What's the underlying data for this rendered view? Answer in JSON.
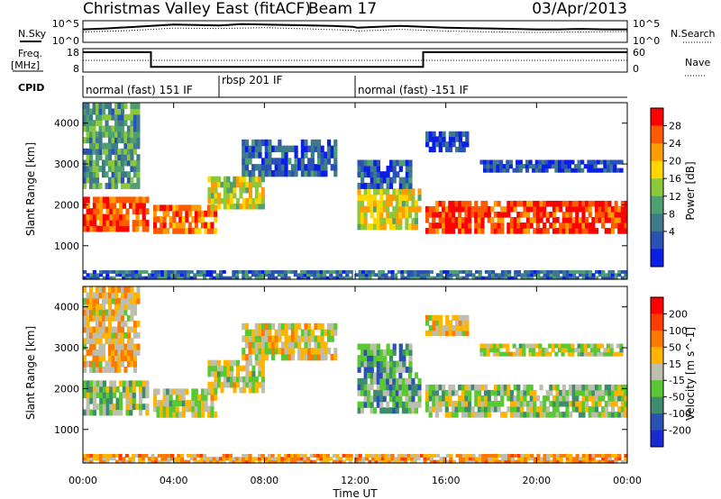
{
  "header": {
    "station": "Christmas Valley East (fitACF)",
    "beam": "Beam 17",
    "date": "03/Apr/2013"
  },
  "status_panels": {
    "nsky_label": "N.Sky",
    "nsearch_label": "N.Search",
    "nsky_ticks": [
      "10^5",
      "10^0"
    ],
    "nsearch_ticks": [
      "10^5",
      "10^0"
    ],
    "freq_label_line1": "Freq.",
    "freq_label_line2": "[MHz]",
    "freq_ticks": [
      "18",
      "8"
    ],
    "nave_label": "Nave",
    "nave_ticks": [
      "60",
      "0"
    ],
    "cpid_label": "CPID",
    "cpid_segments": [
      {
        "label": "normal (fast) 151 IF",
        "start_hr": 0.0,
        "end_hr": 6.0
      },
      {
        "label": "rbsp 201 IF",
        "start_hr": 6.0,
        "end_hr": 12.0
      },
      {
        "label": "normal (fast) -151 IF",
        "start_hr": 12.0,
        "end_hr": 24.0
      }
    ],
    "nsky_series": [
      [
        0.0,
        3.0
      ],
      [
        1.0,
        3.2
      ],
      [
        2.0,
        3.5
      ],
      [
        3.0,
        3.8
      ],
      [
        4.0,
        4.1
      ],
      [
        5.0,
        4.0
      ],
      [
        6.0,
        3.9
      ],
      [
        7.0,
        4.2
      ],
      [
        8.0,
        4.1
      ],
      [
        9.0,
        4.0
      ],
      [
        10.0,
        3.9
      ],
      [
        11.0,
        3.8
      ],
      [
        11.9,
        3.6
      ],
      [
        12.1,
        3.4
      ],
      [
        13.0,
        3.6
      ],
      [
        14.0,
        3.8
      ],
      [
        15.0,
        3.6
      ],
      [
        16.0,
        3.4
      ],
      [
        17.0,
        3.3
      ],
      [
        18.0,
        3.2
      ],
      [
        19.0,
        3.1
      ],
      [
        20.0,
        3.0
      ],
      [
        21.0,
        3.0
      ],
      [
        22.0,
        3.1
      ],
      [
        23.0,
        3.0
      ],
      [
        24.0,
        3.0
      ]
    ],
    "nsearch_series": [
      [
        0.0,
        2.4
      ],
      [
        2.0,
        2.7
      ],
      [
        4.0,
        3.3
      ],
      [
        6.0,
        3.2
      ],
      [
        8.0,
        3.4
      ],
      [
        10.0,
        3.1
      ],
      [
        11.9,
        2.8
      ],
      [
        12.1,
        2.6
      ],
      [
        14.0,
        3.0
      ],
      [
        16.0,
        2.6
      ],
      [
        18.0,
        2.4
      ],
      [
        20.0,
        2.3
      ],
      [
        22.0,
        2.4
      ],
      [
        24.0,
        2.5
      ]
    ],
    "freq_series": [
      [
        0.0,
        16.5
      ],
      [
        3.0,
        16.5
      ],
      [
        3.0,
        10.2
      ],
      [
        15.0,
        10.2
      ],
      [
        15.0,
        16.5
      ],
      [
        24.0,
        16.5
      ]
    ],
    "nave_series": [
      [
        0.0,
        30
      ],
      [
        24.0,
        30
      ]
    ]
  },
  "chart_data": [
    {
      "type": "heatmap",
      "title": "",
      "xlabel": "",
      "ylabel": "Slant Range [km]",
      "xlim": [
        0,
        24
      ],
      "ylim": [
        180,
        4500
      ],
      "yticks": [
        1000,
        2000,
        3000,
        4000
      ],
      "colorbar_label": "Power [dB]",
      "colorbar_ticks": [
        "28",
        "24",
        "20",
        "16",
        "12",
        "8",
        "4"
      ],
      "colorbar_colors": [
        "#0a1ee6",
        "#2a52b4",
        "#3f7a8c",
        "#4fa070",
        "#8cc83c",
        "#ffd700",
        "#ff9c00",
        "#ff5a00",
        "#ff0000"
      ],
      "bands": [
        {
          "t0": 0.0,
          "t1": 2.9,
          "r0": 1350,
          "r1": 2200,
          "level": 0.85
        },
        {
          "t0": 3.1,
          "t1": 5.9,
          "r0": 1300,
          "r1": 2000,
          "level": 0.8
        },
        {
          "t0": 5.5,
          "t1": 8.0,
          "r0": 1900,
          "r1": 2700,
          "level": 0.55
        },
        {
          "t0": 7.0,
          "t1": 11.2,
          "r0": 2700,
          "r1": 3600,
          "level": 0.2
        },
        {
          "t0": 12.1,
          "t1": 14.9,
          "r0": 1400,
          "r1": 2400,
          "level": 0.6
        },
        {
          "t0": 12.1,
          "t1": 14.5,
          "r0": 2400,
          "r1": 3100,
          "level": 0.2
        },
        {
          "t0": 15.1,
          "t1": 24.0,
          "r0": 1300,
          "r1": 2100,
          "level": 0.9
        },
        {
          "t0": 15.1,
          "t1": 17.0,
          "r0": 3300,
          "r1": 3800,
          "level": 0.15
        },
        {
          "t0": 17.5,
          "t1": 23.8,
          "r0": 2800,
          "r1": 3100,
          "level": 0.15
        },
        {
          "t0": 0.0,
          "t1": 2.5,
          "r0": 2400,
          "r1": 4500,
          "level": 0.35
        },
        {
          "t0": 0.0,
          "t1": 24.0,
          "r0": 180,
          "r1": 400,
          "level": 0.25
        }
      ]
    },
    {
      "type": "heatmap",
      "title": "",
      "xlabel": "Time UT",
      "ylabel": "Slant Range [km]",
      "xlim": [
        0,
        24
      ],
      "ylim": [
        180,
        4500
      ],
      "yticks": [
        1000,
        2000,
        3000,
        4000
      ],
      "xticks": [
        "00:00",
        "04:00",
        "08:00",
        "12:00",
        "16:00",
        "20:00",
        "00:00"
      ],
      "colorbar_label": "Velocity [m s^-1]",
      "colorbar_ticks": [
        "200",
        "100",
        "50",
        "15",
        "-15",
        "-50",
        "-100",
        "-200"
      ],
      "colorbar_colors": [
        "#1a2ad0",
        "#2a52b4",
        "#3f8c6c",
        "#5ac832",
        "#bebeaf",
        "#ffb400",
        "#ff7800",
        "#ff3c00",
        "#ff0000"
      ],
      "bands": [
        {
          "t0": 0.0,
          "t1": 2.9,
          "r0": 1350,
          "r1": 2200,
          "level": 0.45
        },
        {
          "t0": 3.1,
          "t1": 5.9,
          "r0": 1300,
          "r1": 2000,
          "level": 0.5
        },
        {
          "t0": 5.5,
          "t1": 8.0,
          "r0": 1900,
          "r1": 2700,
          "level": 0.5
        },
        {
          "t0": 7.0,
          "t1": 11.2,
          "r0": 2700,
          "r1": 3600,
          "level": 0.55
        },
        {
          "t0": 12.1,
          "t1": 14.9,
          "r0": 1400,
          "r1": 2400,
          "level": 0.35
        },
        {
          "t0": 12.1,
          "t1": 14.5,
          "r0": 2400,
          "r1": 3100,
          "level": 0.35
        },
        {
          "t0": 15.1,
          "t1": 24.0,
          "r0": 1300,
          "r1": 2100,
          "level": 0.45
        },
        {
          "t0": 15.1,
          "t1": 17.0,
          "r0": 3300,
          "r1": 3800,
          "level": 0.55
        },
        {
          "t0": 17.5,
          "t1": 23.8,
          "r0": 2800,
          "r1": 3100,
          "level": 0.5
        },
        {
          "t0": 0.0,
          "t1": 2.5,
          "r0": 2400,
          "r1": 4500,
          "level": 0.6
        },
        {
          "t0": 0.0,
          "t1": 24.0,
          "r0": 180,
          "r1": 400,
          "level": 0.65
        }
      ]
    }
  ]
}
